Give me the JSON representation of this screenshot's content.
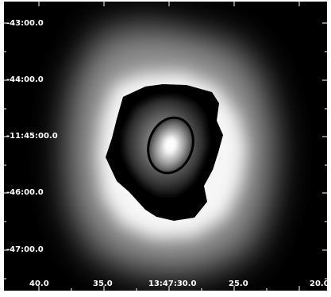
{
  "image": {
    "kind": "astronomical image (grayscale)",
    "colors": {
      "background": "#000000",
      "frame": "#ffffff",
      "glow": "#ffffff",
      "labels": "#ffffff"
    }
  },
  "axes": {
    "dec_labels": [
      "-43:00.0",
      "-44:00.0",
      "-11:45:00.0",
      "-46:00.0",
      "-47:00.0"
    ],
    "ra_labels": [
      "40.0",
      "35.0",
      "13:47:30.0",
      "25.0",
      "20.0"
    ]
  }
}
